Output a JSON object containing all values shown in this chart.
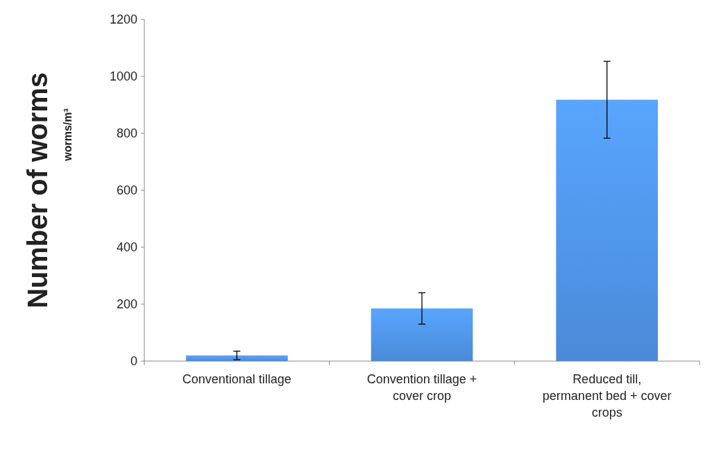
{
  "chart_data": {
    "type": "bar",
    "ylabel": "Number of worms",
    "annotations": [
      "worms/m³"
    ],
    "categories": [
      "Conventional tillage",
      "Convention tillage + cover crop",
      "Reduced till, permanent bed + cover crops"
    ],
    "values": [
      20,
      185,
      918
    ],
    "errors": [
      15,
      55,
      135
    ],
    "color": "#4a8ad8",
    "ylim": [
      0,
      1200
    ],
    "yticks": [
      0,
      200,
      400,
      600,
      800,
      1000,
      1200
    ],
    "grid": false
  }
}
